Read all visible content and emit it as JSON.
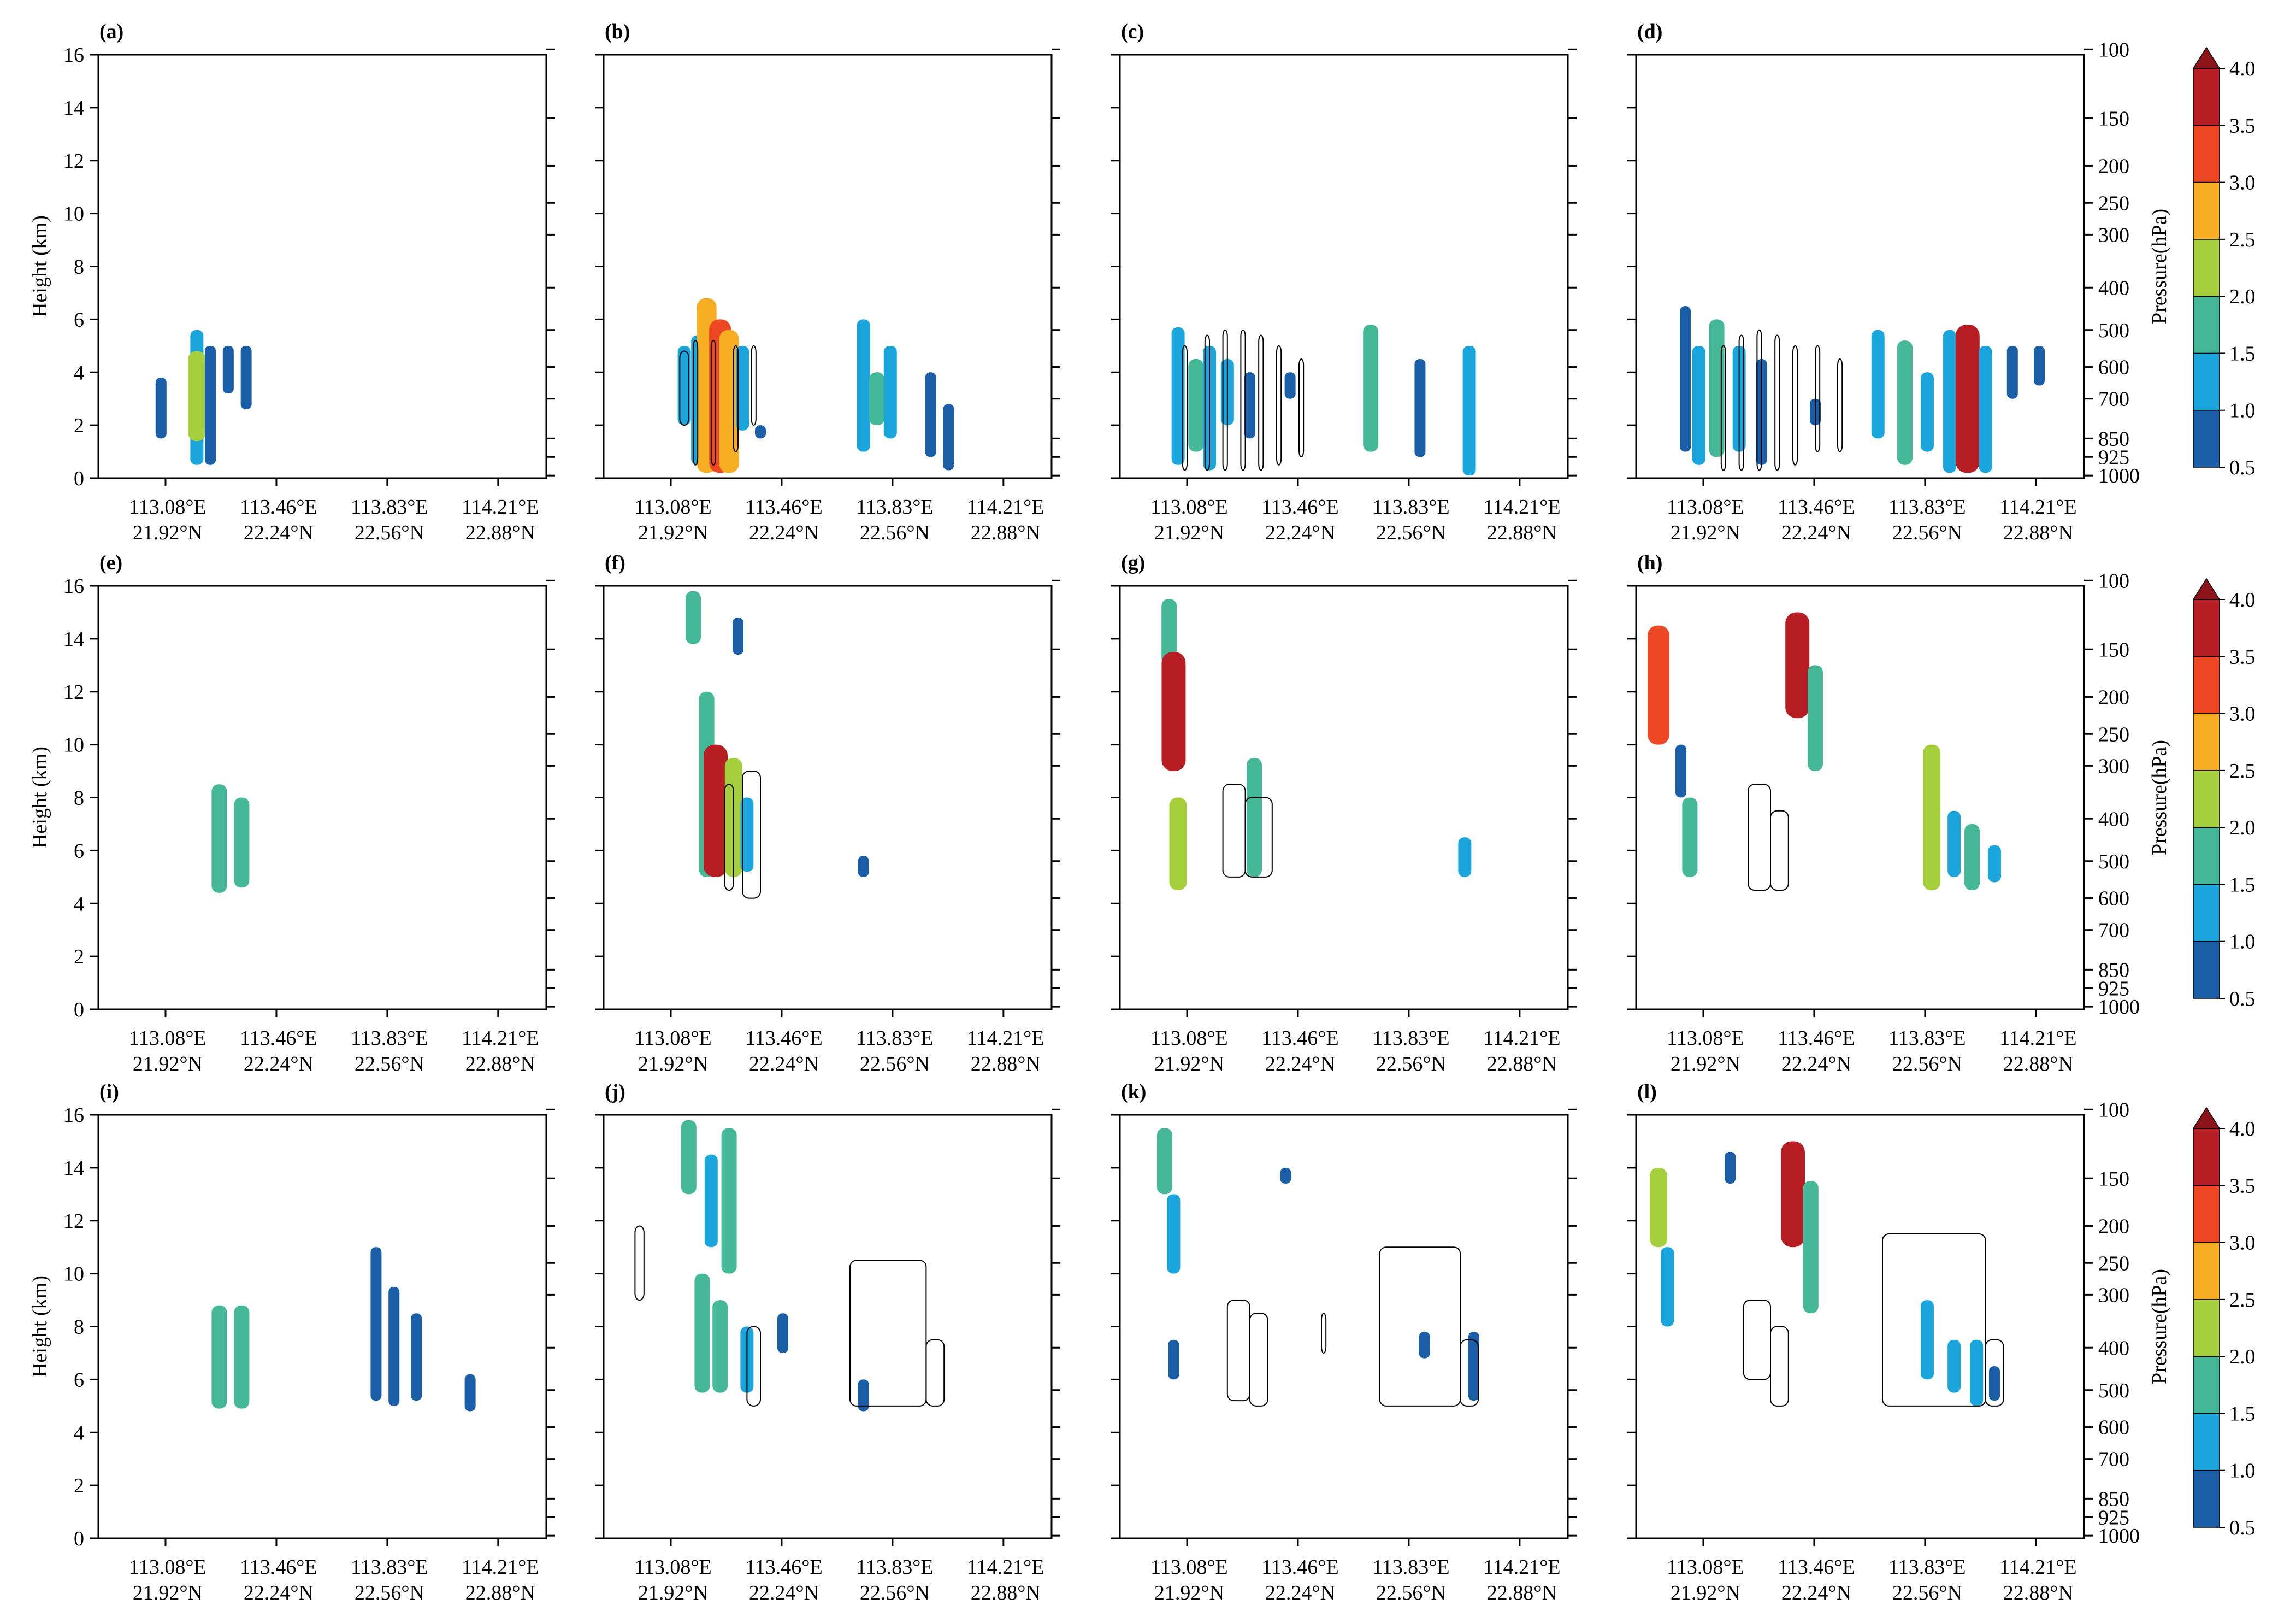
{
  "chart_data": {
    "type": "contour-cross-section",
    "x_ticks": [
      {
        "lon": "113.08°E",
        "lat": "21.92°N"
      },
      {
        "lon": "113.46°E",
        "lat": "22.24°N"
      },
      {
        "lon": "113.83°E",
        "lat": "22.56°N"
      },
      {
        "lon": "114.21°E",
        "lat": "22.88°N"
      }
    ],
    "ylabel": "Height (km)",
    "ylim": [
      0,
      16
    ],
    "y_ticks": [
      "0",
      "2",
      "4",
      "6",
      "8",
      "10",
      "12",
      "14",
      "16"
    ],
    "right_axis_label": "Pressure(hPa)",
    "pressure_ticks": [
      {
        "label": "100",
        "km": 16.2
      },
      {
        "label": "150",
        "km": 13.6
      },
      {
        "label": "200",
        "km": 11.8
      },
      {
        "label": "250",
        "km": 10.4
      },
      {
        "label": "300",
        "km": 9.2
      },
      {
        "label": "400",
        "km": 7.2
      },
      {
        "label": "500",
        "km": 5.6
      },
      {
        "label": "600",
        "km": 4.2
      },
      {
        "label": "700",
        "km": 3.0
      },
      {
        "label": "850",
        "km": 1.5
      },
      {
        "label": "925",
        "km": 0.8
      },
      {
        "label": "1000",
        "km": 0.1
      }
    ],
    "colorbar": {
      "levels": [
        "0.5",
        "1.0",
        "1.5",
        "2.0",
        "2.5",
        "3.0",
        "3.5",
        "4.0"
      ],
      "colors": [
        "#1b5ea8",
        "#1aa6dc",
        "#45b897",
        "#a6cf3d",
        "#f7ae22",
        "#ee4723",
        "#b71e24",
        "#8c1418"
      ]
    },
    "panels": [
      {
        "label": "(a)",
        "cells": [
          [
            0.14,
            1.5,
            3.8,
            1
          ],
          [
            0.22,
            0.5,
            5.6,
            2
          ],
          [
            0.22,
            1.4,
            4.8,
            4
          ],
          [
            0.25,
            0.5,
            5.0,
            1
          ],
          [
            0.29,
            3.2,
            5.0,
            1
          ],
          [
            0.33,
            2.6,
            5.0,
            1
          ]
        ],
        "lines": []
      },
      {
        "label": "(b)",
        "cells": [
          [
            0.18,
            2.0,
            5.0,
            2
          ],
          [
            0.21,
            0.5,
            5.4,
            2
          ],
          [
            0.23,
            0.2,
            6.8,
            5
          ],
          [
            0.26,
            0.2,
            6.0,
            6
          ],
          [
            0.28,
            0.2,
            5.6,
            5
          ],
          [
            0.31,
            1.8,
            5.0,
            2
          ],
          [
            0.35,
            1.5,
            2.0,
            1
          ],
          [
            0.58,
            1.0,
            6.0,
            2
          ],
          [
            0.61,
            2.0,
            4.0,
            3
          ],
          [
            0.64,
            1.5,
            5.0,
            2
          ],
          [
            0.73,
            0.8,
            4.0,
            1
          ],
          [
            0.77,
            0.3,
            2.8,
            1
          ]
        ],
        "lines": [
          [
            0.17,
            4.8,
            0.19,
            2.0
          ],
          [
            0.2,
            5.2,
            0.21,
            0.5
          ],
          [
            0.24,
            5.2,
            0.25,
            0.5
          ],
          [
            0.29,
            5.0,
            0.3,
            1.0
          ],
          [
            0.33,
            5.0,
            0.34,
            2.0
          ]
        ]
      },
      {
        "label": "(c)",
        "cells": [
          [
            0.13,
            0.5,
            5.7,
            2
          ],
          [
            0.17,
            1.0,
            4.5,
            3
          ],
          [
            0.2,
            0.3,
            5.0,
            2
          ],
          [
            0.24,
            2.0,
            4.5,
            2
          ],
          [
            0.29,
            1.5,
            4.0,
            1
          ],
          [
            0.38,
            3.0,
            4.0,
            1
          ],
          [
            0.56,
            1.0,
            5.8,
            3
          ],
          [
            0.67,
            0.8,
            4.5,
            1
          ],
          [
            0.78,
            0.1,
            5.0,
            2
          ]
        ],
        "lines": [
          [
            0.14,
            5.0,
            0.15,
            0.3
          ],
          [
            0.19,
            5.4,
            0.2,
            0.3
          ],
          [
            0.23,
            5.6,
            0.24,
            0.3
          ],
          [
            0.27,
            5.6,
            0.28,
            0.3
          ],
          [
            0.31,
            5.4,
            0.32,
            0.3
          ],
          [
            0.35,
            5.0,
            0.36,
            0.5
          ],
          [
            0.4,
            4.5,
            0.41,
            0.8
          ]
        ]
      },
      {
        "label": "(d)",
        "cells": [
          [
            0.11,
            1.0,
            6.5,
            1
          ],
          [
            0.14,
            0.5,
            5.0,
            2
          ],
          [
            0.18,
            0.8,
            6.0,
            3
          ],
          [
            0.23,
            1.0,
            5.0,
            2
          ],
          [
            0.28,
            0.5,
            4.5,
            1
          ],
          [
            0.4,
            2.0,
            3.0,
            1
          ],
          [
            0.54,
            1.5,
            5.6,
            2
          ],
          [
            0.6,
            0.5,
            5.2,
            3
          ],
          [
            0.65,
            1.0,
            4.0,
            2
          ],
          [
            0.7,
            0.2,
            5.6,
            2
          ],
          [
            0.74,
            0.2,
            5.8,
            7
          ],
          [
            0.78,
            0.2,
            5.0,
            2
          ],
          [
            0.84,
            3.0,
            5.0,
            1
          ],
          [
            0.9,
            3.5,
            5.0,
            1
          ]
        ],
        "lines": [
          [
            0.19,
            5.0,
            0.2,
            0.3
          ],
          [
            0.23,
            5.4,
            0.24,
            0.3
          ],
          [
            0.27,
            5.6,
            0.28,
            0.3
          ],
          [
            0.31,
            5.4,
            0.32,
            0.3
          ],
          [
            0.35,
            5.0,
            0.36,
            0.5
          ],
          [
            0.4,
            5.0,
            0.41,
            1.0
          ],
          [
            0.45,
            4.5,
            0.46,
            1.0
          ]
        ]
      },
      {
        "label": "(e)",
        "cells": [
          [
            0.27,
            4.4,
            8.5,
            3
          ],
          [
            0.32,
            4.6,
            8.0,
            3
          ]
        ],
        "lines": []
      },
      {
        "label": "(f)",
        "cells": [
          [
            0.2,
            13.8,
            15.8,
            3
          ],
          [
            0.3,
            13.4,
            14.8,
            1
          ],
          [
            0.23,
            5.0,
            12.0,
            3
          ],
          [
            0.25,
            5.0,
            10.0,
            7
          ],
          [
            0.29,
            5.0,
            9.5,
            4
          ],
          [
            0.32,
            5.2,
            8.0,
            2
          ],
          [
            0.58,
            5.0,
            5.8,
            1
          ]
        ],
        "lines": [
          [
            0.27,
            4.5,
            0.29,
            8.5
          ],
          [
            0.31,
            4.2,
            0.35,
            9.0
          ]
        ]
      },
      {
        "label": "(g)",
        "cells": [
          [
            0.11,
            13.0,
            15.5,
            3
          ],
          [
            0.12,
            9.0,
            13.5,
            7
          ],
          [
            0.13,
            4.5,
            8.0,
            4
          ],
          [
            0.3,
            5.0,
            9.5,
            3
          ],
          [
            0.77,
            5.0,
            6.5,
            2
          ]
        ],
        "lines": [
          [
            0.23,
            5.0,
            0.28,
            8.5
          ],
          [
            0.28,
            5.0,
            0.34,
            8.0
          ]
        ]
      },
      {
        "label": "(h)",
        "cells": [
          [
            0.05,
            10.0,
            14.5,
            6
          ],
          [
            0.1,
            8.0,
            10.0,
            1
          ],
          [
            0.12,
            5.0,
            8.0,
            3
          ],
          [
            0.36,
            11.0,
            15.0,
            7
          ],
          [
            0.4,
            9.0,
            13.0,
            3
          ],
          [
            0.66,
            4.5,
            10.0,
            4
          ],
          [
            0.71,
            5.0,
            7.5,
            2
          ],
          [
            0.75,
            4.5,
            7.0,
            3
          ],
          [
            0.8,
            4.8,
            6.2,
            2
          ]
        ],
        "lines": [
          [
            0.25,
            4.5,
            0.3,
            8.5
          ],
          [
            0.3,
            4.5,
            0.34,
            7.5
          ]
        ]
      },
      {
        "label": "(i)",
        "cells": [
          [
            0.27,
            4.9,
            8.8,
            3
          ],
          [
            0.32,
            4.9,
            8.8,
            3
          ],
          [
            0.62,
            5.2,
            11.0,
            1
          ],
          [
            0.66,
            5.0,
            9.5,
            1
          ],
          [
            0.71,
            5.2,
            8.5,
            1
          ],
          [
            0.83,
            4.8,
            6.2,
            1
          ]
        ],
        "lines": []
      },
      {
        "label": "(j)",
        "cells": [
          [
            0.19,
            13.0,
            15.8,
            3
          ],
          [
            0.24,
            11.0,
            14.5,
            2
          ],
          [
            0.28,
            10.0,
            15.5,
            3
          ],
          [
            0.22,
            5.5,
            10.0,
            3
          ],
          [
            0.26,
            5.5,
            9.0,
            3
          ],
          [
            0.32,
            5.5,
            8.0,
            2
          ],
          [
            0.4,
            7.0,
            8.5,
            1
          ],
          [
            0.58,
            4.8,
            6.0,
            1
          ]
        ],
        "lines": [
          [
            0.07,
            9.0,
            0.09,
            11.8
          ],
          [
            0.32,
            5.0,
            0.35,
            8.0
          ],
          [
            0.55,
            5.0,
            0.72,
            10.5
          ],
          [
            0.72,
            5.0,
            0.76,
            7.5
          ]
        ]
      },
      {
        "label": "(k)",
        "cells": [
          [
            0.1,
            13.0,
            15.5,
            3
          ],
          [
            0.12,
            10.0,
            13.0,
            2
          ],
          [
            0.37,
            13.4,
            14.0,
            1
          ],
          [
            0.12,
            6.0,
            7.5,
            1
          ],
          [
            0.68,
            6.8,
            7.8,
            1
          ],
          [
            0.79,
            5.2,
            7.8,
            1
          ]
        ],
        "lines": [
          [
            0.24,
            5.2,
            0.29,
            9.0
          ],
          [
            0.29,
            5.0,
            0.33,
            8.5
          ],
          [
            0.45,
            7.0,
            0.46,
            8.5
          ],
          [
            0.58,
            5.0,
            0.76,
            11.0
          ],
          [
            0.76,
            5.0,
            0.8,
            7.5
          ]
        ]
      },
      {
        "label": "(l)",
        "cells": [
          [
            0.05,
            11.0,
            14.0,
            4
          ],
          [
            0.07,
            8.0,
            11.0,
            2
          ],
          [
            0.21,
            13.4,
            14.6,
            1
          ],
          [
            0.35,
            11.0,
            15.0,
            7
          ],
          [
            0.39,
            8.5,
            13.5,
            3
          ],
          [
            0.65,
            6.0,
            9.0,
            2
          ],
          [
            0.71,
            5.5,
            7.5,
            2
          ],
          [
            0.76,
            5.0,
            7.5,
            2
          ],
          [
            0.8,
            5.2,
            6.5,
            1
          ]
        ],
        "lines": [
          [
            0.24,
            6.0,
            0.3,
            9.0
          ],
          [
            0.3,
            5.0,
            0.34,
            8.0
          ],
          [
            0.55,
            5.0,
            0.78,
            11.5
          ],
          [
            0.78,
            5.0,
            0.82,
            7.5
          ]
        ]
      }
    ]
  }
}
